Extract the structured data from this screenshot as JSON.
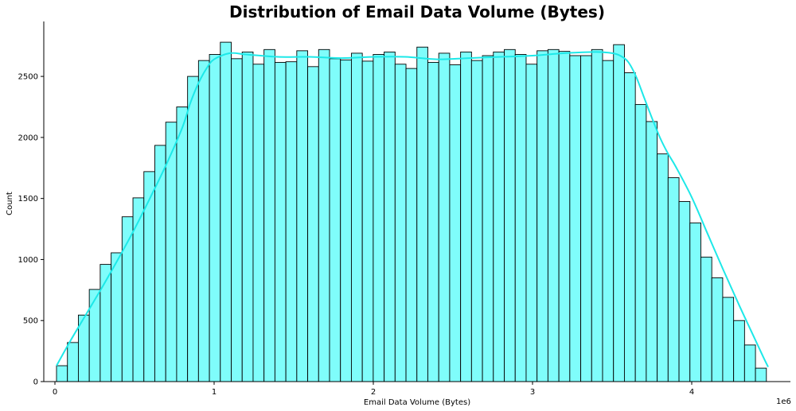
{
  "chart_data": {
    "type": "bar",
    "title": "Distribution of Email Data Volume (Bytes)",
    "xlabel": "Email Data Volume (Bytes)",
    "ylabel": "Count",
    "x_offset_label": "1e6",
    "xlim": [
      -0.07,
      4.62
    ],
    "ylim": [
      0,
      2950
    ],
    "x_ticks": [
      0,
      1,
      2,
      3,
      4
    ],
    "x_tick_labels": [
      "0",
      "1",
      "2",
      "3",
      "4"
    ],
    "y_ticks": [
      0,
      500,
      1000,
      1500,
      2000,
      2500
    ],
    "y_tick_labels": [
      "0",
      "500",
      "1000",
      "1500",
      "2000",
      "2500"
    ],
    "bin_start": 0.01,
    "bin_width": 0.0686,
    "bin_counts": [
      130,
      320,
      545,
      755,
      960,
      1055,
      1350,
      1505,
      1720,
      1935,
      2125,
      2250,
      2500,
      2630,
      2680,
      2780,
      2645,
      2700,
      2600,
      2720,
      2615,
      2620,
      2710,
      2580,
      2720,
      2645,
      2635,
      2690,
      2625,
      2680,
      2700,
      2600,
      2565,
      2740,
      2615,
      2690,
      2595,
      2700,
      2630,
      2670,
      2700,
      2720,
      2680,
      2600,
      2710,
      2720,
      2705,
      2670,
      2670,
      2720,
      2630,
      2760,
      2530,
      2270,
      2130,
      1865,
      1670,
      1475,
      1300,
      1020,
      850,
      690,
      500,
      300,
      110
    ],
    "kde_x": [
      0.01,
      0.1,
      0.2,
      0.3,
      0.4,
      0.5,
      0.6,
      0.7,
      0.8,
      0.85,
      0.9,
      0.95,
      1.0,
      1.1,
      1.2,
      1.4,
      1.6,
      1.8,
      2.0,
      2.2,
      2.4,
      2.6,
      2.8,
      3.0,
      3.2,
      3.4,
      3.5,
      3.55,
      3.6,
      3.65,
      3.7,
      3.75,
      3.8,
      3.85,
      3.9,
      4.0,
      4.1,
      4.2,
      4.3,
      4.4,
      4.45,
      4.48
    ],
    "kde_y": [
      130,
      340,
      560,
      780,
      1010,
      1250,
      1510,
      1780,
      2080,
      2280,
      2440,
      2560,
      2640,
      2690,
      2680,
      2660,
      2660,
      2650,
      2660,
      2660,
      2640,
      2650,
      2660,
      2670,
      2690,
      2700,
      2690,
      2670,
      2620,
      2500,
      2330,
      2160,
      2000,
      1870,
      1760,
      1510,
      1210,
      910,
      620,
      340,
      200,
      120
    ],
    "bar_color": "#7ffdfb",
    "line_color": "#1de8e8",
    "grid": false
  }
}
